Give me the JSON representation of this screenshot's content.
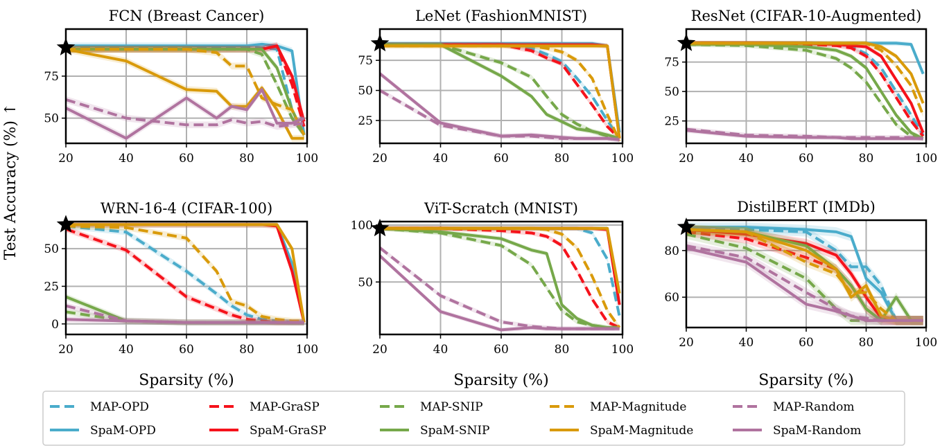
{
  "figure": {
    "ylabel": "Test Accuracy (%) ↑",
    "xlabel": "Sparsity (%)"
  },
  "colors": {
    "OPD": "#4aaccb",
    "GraSP": "#f5121b",
    "SNIP": "#76a84a",
    "Magnitude": "#d99a0a",
    "Random": "#b0739f"
  },
  "legend": {
    "placement": "bottom",
    "items": [
      {
        "label": "MAP-OPD",
        "method": "OPD",
        "style": "dashed"
      },
      {
        "label": "MAP-GraSP",
        "method": "GraSP",
        "style": "dashed"
      },
      {
        "label": "MAP-SNIP",
        "method": "SNIP",
        "style": "dashed"
      },
      {
        "label": "MAP-Magnitude",
        "method": "Magnitude",
        "style": "dashed"
      },
      {
        "label": "MAP-Random",
        "method": "Random",
        "style": "dashed"
      },
      {
        "label": "SpaM-OPD",
        "method": "OPD",
        "style": "solid"
      },
      {
        "label": "SpaM-GraSP",
        "method": "GraSP",
        "style": "solid"
      },
      {
        "label": "SpaM-SNIP",
        "method": "SNIP",
        "style": "solid"
      },
      {
        "label": "SpaM-Magnitude",
        "method": "Magnitude",
        "style": "solid"
      },
      {
        "label": "SpaM-Random",
        "method": "Random",
        "style": "solid"
      }
    ]
  },
  "chart_data": [
    {
      "type": "line",
      "title": "FCN (Breast Cancer)",
      "xlim": [
        20,
        100
      ],
      "ylim": [
        35,
        103
      ],
      "xticks": [
        20,
        40,
        60,
        80,
        100
      ],
      "yticks": [
        50,
        75
      ],
      "grid": true,
      "star": {
        "x": 20,
        "y": 92
      },
      "x": [
        20,
        40,
        60,
        70,
        75,
        80,
        85,
        90,
        95,
        99
      ],
      "series": [
        {
          "name": "MAP-OPD",
          "values": [
            92,
            92,
            92,
            92,
            92,
            92,
            92,
            91,
            55,
            40
          ]
        },
        {
          "name": "SpaM-OPD",
          "values": [
            93,
            93,
            93,
            93,
            93,
            93,
            94,
            93,
            90,
            40
          ]
        },
        {
          "name": "MAP-GraSP",
          "values": [
            91,
            91,
            91,
            91,
            91,
            91,
            91,
            93,
            70,
            45
          ]
        },
        {
          "name": "SpaM-GraSP",
          "values": [
            91,
            91,
            91,
            91,
            91,
            91,
            91,
            93,
            75,
            48
          ]
        },
        {
          "name": "MAP-SNIP",
          "values": [
            91,
            91,
            91,
            91,
            91,
            91,
            88,
            70,
            50,
            40
          ]
        },
        {
          "name": "SpaM-SNIP",
          "values": [
            91,
            91,
            91,
            91,
            91,
            91,
            91,
            80,
            55,
            40
          ]
        },
        {
          "name": "MAP-Magnitude",
          "values": [
            91,
            91,
            91,
            89,
            81,
            81,
            62,
            58,
            55,
            40
          ]
        },
        {
          "name": "SpaM-Magnitude",
          "values": [
            91,
            84,
            67,
            66,
            57,
            57,
            68,
            55,
            38,
            38
          ]
        },
        {
          "name": "MAP-Random",
          "values": [
            61,
            50,
            46,
            46,
            49,
            47,
            48,
            45,
            46,
            47
          ]
        },
        {
          "name": "SpaM-Random",
          "values": [
            56,
            38,
            62,
            50,
            57,
            55,
            67,
            47,
            47,
            50
          ]
        }
      ]
    },
    {
      "type": "line",
      "title": "LeNet (FashionMNIST)",
      "xlim": [
        20,
        100
      ],
      "ylim": [
        6,
        101
      ],
      "xticks": [
        20,
        40,
        60,
        80,
        100
      ],
      "yticks": [
        25,
        50,
        75
      ],
      "grid": true,
      "star": {
        "x": 20,
        "y": 89
      },
      "x": [
        20,
        40,
        60,
        70,
        75,
        80,
        85,
        90,
        95,
        99
      ],
      "series": [
        {
          "name": "MAP-OPD",
          "values": [
            88,
            88,
            88,
            85,
            80,
            74,
            60,
            45,
            25,
            10
          ]
        },
        {
          "name": "SpaM-OPD",
          "values": [
            89,
            89,
            89,
            89,
            89,
            89,
            89,
            89,
            87,
            15
          ]
        },
        {
          "name": "MAP-GraSP",
          "values": [
            88,
            88,
            88,
            83,
            77,
            72,
            55,
            38,
            20,
            10
          ]
        },
        {
          "name": "SpaM-GraSP",
          "values": [
            88,
            88,
            88,
            88,
            88,
            88,
            88,
            88,
            87,
            10
          ]
        },
        {
          "name": "MAP-SNIP",
          "values": [
            88,
            88,
            73,
            61,
            45,
            30,
            22,
            16,
            12,
            10
          ]
        },
        {
          "name": "SpaM-SNIP",
          "values": [
            88,
            88,
            62,
            45,
            30,
            24,
            18,
            16,
            13,
            10
          ]
        },
        {
          "name": "MAP-Magnitude",
          "values": [
            87,
            87,
            87,
            87,
            85,
            82,
            75,
            60,
            30,
            8
          ]
        },
        {
          "name": "SpaM-Magnitude",
          "values": [
            87,
            87,
            87,
            87,
            87,
            87,
            87,
            87,
            87,
            10
          ]
        },
        {
          "name": "MAP-Random",
          "values": [
            50,
            21,
            12,
            12,
            11,
            10,
            10,
            10,
            10,
            9
          ]
        },
        {
          "name": "SpaM-Random",
          "values": [
            64,
            23,
            12,
            13,
            12,
            11,
            10,
            10,
            10,
            9
          ]
        }
      ]
    },
    {
      "type": "line",
      "title": "ResNet (CIFAR-10-Augmented)",
      "xlim": [
        20,
        100
      ],
      "ylim": [
        6,
        103
      ],
      "xticks": [
        20,
        40,
        60,
        80,
        100
      ],
      "yticks": [
        25,
        50,
        75
      ],
      "grid": true,
      "star": {
        "x": 20,
        "y": 91
      },
      "x": [
        20,
        40,
        60,
        70,
        75,
        80,
        85,
        90,
        95,
        99
      ],
      "series": [
        {
          "name": "MAP-OPD",
          "values": [
            91,
            91,
            91,
            90,
            88,
            82,
            70,
            50,
            30,
            13
          ]
        },
        {
          "name": "SpaM-OPD",
          "values": [
            91,
            91,
            91,
            91,
            91,
            91,
            91,
            91,
            90,
            65
          ]
        },
        {
          "name": "MAP-GraSP",
          "values": [
            91,
            91,
            90,
            89,
            87,
            80,
            65,
            45,
            25,
            12
          ]
        },
        {
          "name": "SpaM-GraSP",
          "values": [
            91,
            91,
            91,
            90,
            89,
            88,
            80,
            60,
            40,
            15
          ]
        },
        {
          "name": "MAP-SNIP",
          "values": [
            90,
            89,
            85,
            78,
            70,
            58,
            40,
            22,
            12,
            10
          ]
        },
        {
          "name": "SpaM-SNIP",
          "values": [
            90,
            90,
            88,
            85,
            80,
            70,
            50,
            30,
            15,
            10
          ]
        },
        {
          "name": "MAP-Magnitude",
          "values": [
            91,
            91,
            91,
            91,
            91,
            91,
            85,
            72,
            55,
            30
          ]
        },
        {
          "name": "SpaM-Magnitude",
          "values": [
            91,
            91,
            91,
            91,
            91,
            91,
            88,
            80,
            65,
            40
          ]
        },
        {
          "name": "MAP-Random",
          "values": [
            18,
            13,
            12,
            11,
            11,
            11,
            11,
            11,
            11,
            10
          ]
        },
        {
          "name": "SpaM-Random",
          "values": [
            17,
            12,
            11,
            11,
            10,
            10,
            10,
            10,
            10,
            10
          ]
        }
      ]
    },
    {
      "type": "line",
      "title": "WRN-16-4 (CIFAR-100)",
      "xlim": [
        20,
        100
      ],
      "ylim": [
        -7,
        68
      ],
      "xticks": [
        20,
        40,
        60,
        80,
        100
      ],
      "yticks": [
        0,
        25,
        50
      ],
      "grid": true,
      "star": {
        "x": 20,
        "y": 66
      },
      "x": [
        20,
        40,
        60,
        70,
        75,
        80,
        85,
        90,
        95,
        99
      ],
      "series": [
        {
          "name": "MAP-OPD",
          "values": [
            65,
            61,
            35,
            20,
            12,
            6,
            3,
            2,
            1,
            1
          ]
        },
        {
          "name": "SpaM-OPD",
          "values": [
            66,
            66,
            66,
            66,
            66,
            66,
            66,
            66,
            40,
            1
          ]
        },
        {
          "name": "MAP-GraSP",
          "values": [
            63,
            49,
            18,
            10,
            6,
            3,
            2,
            1,
            1,
            1
          ]
        },
        {
          "name": "SpaM-GraSP",
          "values": [
            66,
            66,
            66,
            66,
            66,
            66,
            66,
            65,
            35,
            1
          ]
        },
        {
          "name": "MAP-SNIP",
          "values": [
            8,
            2,
            1,
            1,
            1,
            1,
            1,
            1,
            1,
            1
          ]
        },
        {
          "name": "SpaM-SNIP",
          "values": [
            18,
            2,
            1,
            1,
            1,
            1,
            1,
            1,
            1,
            1
          ]
        },
        {
          "name": "MAP-Magnitude",
          "values": [
            65,
            64,
            57,
            35,
            15,
            12,
            5,
            3,
            2,
            2
          ]
        },
        {
          "name": "SpaM-Magnitude",
          "values": [
            66,
            66,
            66,
            66,
            66,
            66,
            66,
            66,
            50,
            1
          ]
        },
        {
          "name": "MAP-Random",
          "values": [
            12,
            2,
            1,
            1,
            1,
            1,
            1,
            1,
            1,
            1
          ]
        },
        {
          "name": "SpaM-Random",
          "values": [
            3,
            2,
            1,
            1,
            1,
            1,
            1,
            1,
            1,
            1
          ]
        }
      ]
    },
    {
      "type": "line",
      "title": "ViT-Scratch (MNIST)",
      "xlim": [
        20,
        100
      ],
      "ylim": [
        4,
        103
      ],
      "xticks": [
        20,
        40,
        60,
        80,
        100
      ],
      "yticks": [
        50,
        100
      ],
      "grid": true,
      "star": {
        "x": 20,
        "y": 97
      },
      "x": [
        20,
        40,
        60,
        70,
        75,
        80,
        85,
        90,
        95,
        99
      ],
      "series": [
        {
          "name": "MAP-OPD",
          "values": [
            97,
            97,
            97,
            97,
            97,
            97,
            97,
            93,
            70,
            20
          ]
        },
        {
          "name": "SpaM-OPD",
          "values": [
            97,
            97,
            97,
            97,
            97,
            97,
            97,
            97,
            97,
            30
          ]
        },
        {
          "name": "MAP-GraSP",
          "values": [
            97,
            97,
            95,
            93,
            90,
            82,
            60,
            35,
            15,
            10
          ]
        },
        {
          "name": "SpaM-GraSP",
          "values": [
            97,
            97,
            97,
            97,
            97,
            97,
            97,
            97,
            96,
            30
          ]
        },
        {
          "name": "MAP-SNIP",
          "values": [
            97,
            93,
            82,
            65,
            45,
            25,
            15,
            12,
            10,
            10
          ]
        },
        {
          "name": "SpaM-SNIP",
          "values": [
            97,
            94,
            88,
            78,
            75,
            30,
            18,
            12,
            10,
            10
          ]
        },
        {
          "name": "MAP-Magnitude",
          "values": [
            97,
            97,
            97,
            97,
            96,
            92,
            80,
            55,
            25,
            10
          ]
        },
        {
          "name": "SpaM-Magnitude",
          "values": [
            97,
            97,
            97,
            97,
            97,
            97,
            97,
            97,
            97,
            40
          ]
        },
        {
          "name": "MAP-Random",
          "values": [
            80,
            38,
            15,
            11,
            10,
            9,
            9,
            9,
            9,
            9
          ]
        },
        {
          "name": "SpaM-Random",
          "values": [
            73,
            24,
            8,
            10,
            9,
            9,
            9,
            9,
            9,
            9
          ]
        }
      ]
    },
    {
      "type": "line",
      "title": "DistilBERT (IMDb)",
      "xlim": [
        20,
        100
      ],
      "ylim": [
        47,
        93
      ],
      "xticks": [
        20,
        40,
        60,
        80,
        100
      ],
      "yticks": [
        60,
        80
      ],
      "grid": true,
      "star": {
        "x": 20,
        "y": 90
      },
      "x": [
        20,
        40,
        60,
        70,
        75,
        80,
        85,
        90,
        95,
        99
      ],
      "series": [
        {
          "name": "MAP-OPD",
          "values": [
            89,
            89,
            88,
            80,
            73,
            73,
            65,
            50,
            50,
            50
          ]
        },
        {
          "name": "SpaM-OPD",
          "values": [
            90,
            90,
            89,
            88,
            86,
            68,
            62,
            50,
            50,
            50
          ]
        },
        {
          "name": "MAP-GraSP",
          "values": [
            88,
            85,
            77,
            72,
            65,
            55,
            50,
            50,
            50,
            50
          ]
        },
        {
          "name": "SpaM-GraSP",
          "values": [
            89,
            87,
            83,
            78,
            70,
            60,
            51,
            50,
            50,
            50
          ]
        },
        {
          "name": "MAP-SNIP",
          "values": [
            87,
            81,
            68,
            55,
            50,
            50,
            50,
            50,
            50,
            50
          ]
        },
        {
          "name": "SpaM-SNIP",
          "values": [
            89,
            88,
            82,
            72,
            65,
            55,
            50,
            60,
            50,
            50
          ]
        },
        {
          "name": "MAP-Magnitude",
          "values": [
            89,
            88,
            75,
            70,
            62,
            62,
            55,
            50,
            50,
            50
          ]
        },
        {
          "name": "SpaM-Magnitude",
          "values": [
            89,
            88,
            80,
            72,
            60,
            65,
            52,
            50,
            50,
            50
          ]
        },
        {
          "name": "MAP-Random",
          "values": [
            82,
            77,
            62,
            55,
            52,
            51,
            50,
            50,
            50,
            50
          ]
        },
        {
          "name": "SpaM-Random",
          "values": [
            81,
            75,
            57,
            54,
            52,
            50,
            50,
            50,
            50,
            50
          ]
        }
      ]
    }
  ]
}
